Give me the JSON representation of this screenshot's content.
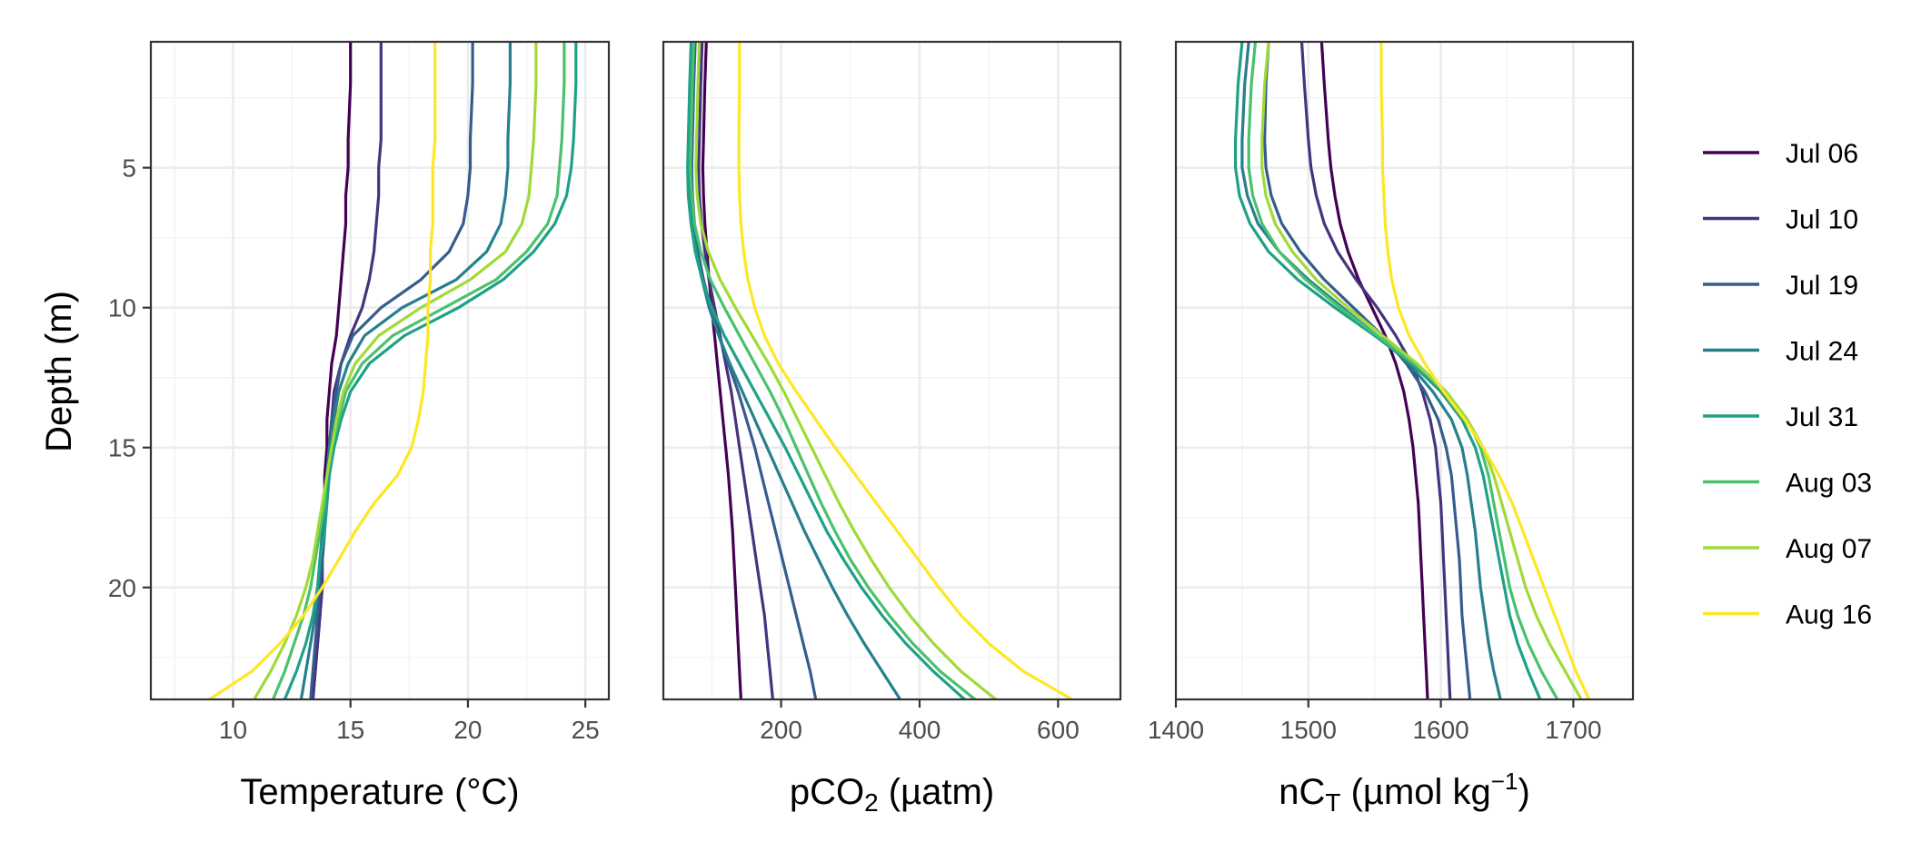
{
  "figure": {
    "y_axis_label": "Depth (m)",
    "y_tick_labels": [
      "5",
      "10",
      "15",
      "20"
    ]
  },
  "legend": {
    "items": [
      {
        "label": "Jul 06",
        "color": "#440154"
      },
      {
        "label": "Jul 10",
        "color": "#46337e"
      },
      {
        "label": "Jul 19",
        "color": "#365c8d"
      },
      {
        "label": "Jul 24",
        "color": "#277f8e"
      },
      {
        "label": "Jul 31",
        "color": "#1fa187"
      },
      {
        "label": "Aug 03",
        "color": "#4ac16d"
      },
      {
        "label": "Aug 07",
        "color": "#a0da39"
      },
      {
        "label": "Aug 16",
        "color": "#fde725"
      }
    ]
  },
  "chart_data": [
    {
      "type": "line",
      "xlabel": "Temperature (°C)",
      "ylabel": "Depth (m)",
      "xlim": [
        6.5,
        26
      ],
      "ylim": [
        24,
        0.5
      ],
      "x_ticks": [
        10,
        15,
        20,
        25
      ],
      "x_tick_labels": [
        "10",
        "15",
        "20",
        "25"
      ],
      "y_ticks": [
        5,
        10,
        15,
        20
      ],
      "depth": [
        0.5,
        2,
        4,
        5,
        6,
        7,
        8,
        9,
        10,
        11,
        12,
        13,
        14,
        15,
        16,
        17,
        18,
        19,
        20,
        21,
        22,
        23,
        24
      ],
      "series": [
        {
          "name": "Jul 06",
          "values": [
            15.0,
            15.0,
            14.9,
            14.9,
            14.8,
            14.8,
            14.7,
            14.6,
            14.5,
            14.4,
            14.2,
            14.1,
            14.0,
            14.0,
            13.9,
            13.9,
            13.8,
            13.8,
            13.7,
            13.7,
            13.6,
            13.5,
            13.4
          ]
        },
        {
          "name": "Jul 10",
          "values": [
            16.3,
            16.3,
            16.3,
            16.2,
            16.2,
            16.1,
            16.0,
            15.8,
            15.5,
            15.0,
            14.6,
            14.3,
            14.2,
            14.1,
            14.0,
            13.9,
            13.9,
            13.8,
            13.8,
            13.7,
            13.6,
            13.5,
            13.4
          ]
        },
        {
          "name": "Jul 19",
          "values": [
            20.2,
            20.2,
            20.1,
            20.1,
            20.0,
            19.8,
            19.2,
            18.0,
            16.3,
            15.1,
            14.6,
            14.4,
            14.2,
            14.1,
            14.0,
            13.9,
            13.9,
            13.8,
            13.7,
            13.6,
            13.5,
            13.4,
            13.3
          ]
        },
        {
          "name": "Jul 24",
          "values": [
            21.8,
            21.8,
            21.7,
            21.7,
            21.6,
            21.4,
            20.8,
            19.5,
            17.2,
            15.6,
            14.9,
            14.5,
            14.3,
            14.1,
            14.0,
            13.9,
            13.8,
            13.7,
            13.6,
            13.5,
            13.3,
            13.1,
            12.9
          ]
        },
        {
          "name": "Jul 31",
          "values": [
            24.6,
            24.6,
            24.5,
            24.4,
            24.2,
            23.7,
            22.8,
            21.5,
            19.6,
            17.3,
            15.8,
            15.0,
            14.6,
            14.3,
            14.1,
            14.0,
            13.9,
            13.7,
            13.6,
            13.4,
            13.1,
            12.7,
            12.2
          ]
        },
        {
          "name": "Aug 03",
          "values": [
            24.1,
            24.1,
            24.0,
            23.9,
            23.8,
            23.4,
            22.5,
            21.2,
            19.0,
            16.8,
            15.5,
            14.8,
            14.5,
            14.2,
            14.0,
            13.9,
            13.7,
            13.5,
            13.3,
            13.0,
            12.6,
            12.2,
            11.7
          ]
        },
        {
          "name": "Aug 07",
          "values": [
            22.9,
            22.9,
            22.8,
            22.7,
            22.6,
            22.3,
            21.6,
            20.1,
            18.0,
            16.2,
            15.2,
            14.7,
            14.4,
            14.2,
            14.0,
            13.8,
            13.6,
            13.4,
            13.1,
            12.7,
            12.2,
            11.6,
            10.9
          ]
        },
        {
          "name": "Aug 16",
          "values": [
            18.6,
            18.6,
            18.6,
            18.5,
            18.5,
            18.5,
            18.4,
            18.4,
            18.3,
            18.3,
            18.2,
            18.1,
            17.9,
            17.6,
            17.0,
            16.0,
            15.2,
            14.5,
            13.8,
            13.0,
            12.0,
            10.8,
            9.0
          ]
        }
      ]
    },
    {
      "type": "line",
      "xlabel": "pCO₂ (µatm)",
      "ylabel": "Depth (m)",
      "xlim": [
        30,
        690
      ],
      "ylim": [
        24,
        0.5
      ],
      "x_ticks": [
        200,
        400,
        600
      ],
      "x_tick_labels": [
        "200",
        "400",
        "600"
      ],
      "y_ticks": [
        5,
        10,
        15,
        20
      ],
      "depth": [
        0.5,
        2,
        4,
        5,
        6,
        7,
        8,
        9,
        10,
        11,
        12,
        13,
        14,
        15,
        16,
        17,
        18,
        19,
        20,
        21,
        22,
        23,
        24
      ],
      "series": [
        {
          "name": "Jul 06",
          "values": [
            92,
            90,
            88,
            87,
            88,
            90,
            93,
            96,
            100,
            104,
            108,
            112,
            116,
            120,
            124,
            127,
            130,
            132,
            134,
            136,
            138,
            140,
            142
          ]
        },
        {
          "name": "Jul 10",
          "values": [
            86,
            84,
            82,
            81,
            82,
            85,
            90,
            96,
            104,
            112,
            120,
            128,
            134,
            140,
            146,
            152,
            158,
            164,
            170,
            176,
            180,
            184,
            188
          ]
        },
        {
          "name": "Jul 19",
          "values": [
            76,
            74,
            72,
            71,
            72,
            75,
            80,
            88,
            98,
            110,
            124,
            138,
            150,
            162,
            172,
            182,
            192,
            202,
            212,
            222,
            232,
            242,
            250
          ]
        },
        {
          "name": "Jul 24",
          "values": [
            72,
            70,
            68,
            67,
            68,
            72,
            78,
            86,
            96,
            110,
            126,
            144,
            162,
            180,
            198,
            216,
            234,
            254,
            274,
            296,
            320,
            346,
            372
          ]
        },
        {
          "name": "Jul 31",
          "values": [
            70,
            68,
            66,
            65,
            66,
            70,
            76,
            86,
            100,
            118,
            140,
            162,
            184,
            206,
            226,
            246,
            266,
            290,
            316,
            346,
            380,
            420,
            465
          ]
        },
        {
          "name": "Aug 03",
          "values": [
            74,
            72,
            70,
            69,
            71,
            75,
            84,
            98,
            118,
            140,
            162,
            184,
            204,
            222,
            240,
            258,
            278,
            300,
            326,
            356,
            390,
            430,
            480
          ]
        },
        {
          "name": "Aug 07",
          "values": [
            82,
            80,
            78,
            77,
            79,
            84,
            95,
            112,
            134,
            158,
            182,
            204,
            224,
            244,
            264,
            284,
            306,
            330,
            356,
            386,
            420,
            460,
            510
          ]
        },
        {
          "name": "Aug 16",
          "values": [
            140,
            140,
            139,
            139,
            140,
            142,
            146,
            152,
            162,
            176,
            196,
            222,
            250,
            278,
            308,
            338,
            368,
            398,
            428,
            460,
            500,
            550,
            620
          ]
        }
      ]
    },
    {
      "type": "line",
      "xlabel": "nC_T (µmol kg⁻¹)",
      "ylabel": "Depth (m)",
      "xlim": [
        1400,
        1745
      ],
      "ylim": [
        24,
        0.5
      ],
      "x_ticks": [
        1400,
        1500,
        1600,
        1700
      ],
      "x_tick_labels": [
        "1400",
        "1500",
        "1600",
        "1700"
      ],
      "y_ticks": [
        5,
        10,
        15,
        20
      ],
      "depth": [
        0.5,
        2,
        4,
        5,
        6,
        7,
        8,
        9,
        10,
        11,
        12,
        13,
        14,
        15,
        16,
        17,
        18,
        19,
        20,
        21,
        22,
        23,
        24
      ],
      "series": [
        {
          "name": "Jul 06",
          "values": [
            1510,
            1512,
            1515,
            1517,
            1520,
            1524,
            1530,
            1538,
            1548,
            1558,
            1566,
            1572,
            1576,
            1579,
            1581,
            1583,
            1584,
            1585,
            1586,
            1587,
            1588,
            1589,
            1590
          ]
        },
        {
          "name": "Jul 10",
          "values": [
            1495,
            1497,
            1500,
            1502,
            1506,
            1512,
            1522,
            1536,
            1552,
            1566,
            1578,
            1586,
            1592,
            1596,
            1598,
            1600,
            1601,
            1602,
            1603,
            1604,
            1605,
            1606,
            1607
          ]
        },
        {
          "name": "Jul 19",
          "values": [
            1470,
            1468,
            1467,
            1468,
            1472,
            1480,
            1494,
            1512,
            1534,
            1556,
            1574,
            1588,
            1598,
            1604,
            1608,
            1610,
            1612,
            1614,
            1615,
            1616,
            1618,
            1620,
            1622
          ]
        },
        {
          "name": "Jul 24",
          "values": [
            1455,
            1452,
            1450,
            1450,
            1454,
            1462,
            1478,
            1500,
            1526,
            1552,
            1576,
            1594,
            1608,
            1616,
            1620,
            1623,
            1626,
            1628,
            1630,
            1633,
            1636,
            1640,
            1645
          ]
        },
        {
          "name": "Jul 31",
          "values": [
            1450,
            1447,
            1445,
            1445,
            1448,
            1456,
            1470,
            1492,
            1520,
            1550,
            1578,
            1600,
            1616,
            1626,
            1632,
            1636,
            1640,
            1644,
            1648,
            1652,
            1658,
            1666,
            1675
          ]
        },
        {
          "name": "Aug 03",
          "values": [
            1460,
            1457,
            1455,
            1455,
            1458,
            1465,
            1478,
            1498,
            1524,
            1552,
            1580,
            1604,
            1620,
            1630,
            1636,
            1640,
            1644,
            1648,
            1652,
            1658,
            1666,
            1676,
            1688
          ]
        },
        {
          "name": "Aug 07",
          "values": [
            1470,
            1467,
            1465,
            1465,
            1468,
            1475,
            1488,
            1506,
            1530,
            1556,
            1582,
            1604,
            1620,
            1632,
            1640,
            1646,
            1652,
            1658,
            1664,
            1672,
            1682,
            1694,
            1706
          ]
        },
        {
          "name": "Aug 16",
          "values": [
            1555,
            1555,
            1556,
            1556,
            1557,
            1558,
            1560,
            1563,
            1568,
            1576,
            1588,
            1602,
            1618,
            1632,
            1644,
            1654,
            1662,
            1670,
            1678,
            1686,
            1694,
            1702,
            1712
          ]
        }
      ]
    }
  ]
}
